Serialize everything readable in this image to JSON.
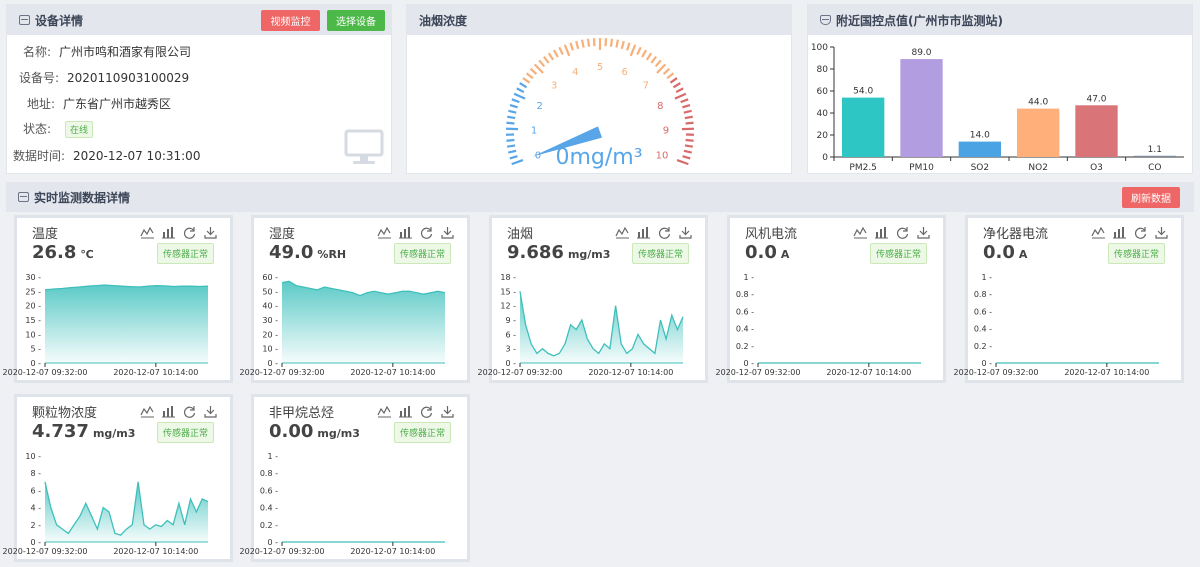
{
  "device": {
    "title": "设备详情",
    "btn_video": "视频监控",
    "btn_select": "选择设备",
    "fields": [
      {
        "k": "名称:",
        "v": "广州市鸣和酒家有限公司"
      },
      {
        "k": "设备号:",
        "v": "2020110903100029"
      },
      {
        "k": "地址:",
        "v": "广东省广州市越秀区"
      },
      {
        "k": "状态:",
        "v": "在线"
      },
      {
        "k": "数据时间:",
        "v": "2020-12-07 10:31:00"
      }
    ]
  },
  "gauge": {
    "title": "油烟浓度",
    "min": 0,
    "max": 10,
    "value": 0,
    "ticks": [
      "0",
      "1",
      "2",
      "3",
      "4",
      "5",
      "6",
      "7",
      "8",
      "9",
      "10"
    ],
    "value_text": "0mg/m³",
    "colors": {
      "low": "#58a5e8",
      "mid": "#f7b07a",
      "high": "#d96a6a"
    }
  },
  "aqi": {
    "title": "附近国控点值(广州市市监测站)",
    "chart_data": {
      "type": "bar",
      "categories": [
        "PM2.5",
        "PM10",
        "SO2",
        "NO2",
        "O3",
        "CO"
      ],
      "values": [
        54.0,
        89.0,
        14.0,
        44.0,
        47.0,
        1.1
      ],
      "value_labels": [
        "54.0",
        "89.0",
        "14.0",
        "44.0",
        "47.0",
        "1.1"
      ],
      "ylim": [
        0,
        100
      ],
      "yticks": [
        "0",
        "20",
        "40",
        "60",
        "80",
        "100"
      ],
      "colors": [
        "#2ec6c4",
        "#b29de0",
        "#4ba3e3",
        "#ffb07a",
        "#d97579",
        "#7a8a9a"
      ]
    }
  },
  "realtime": {
    "title": "实时监测数据详情",
    "refresh": "刷新数据",
    "status_label": "传感器正常",
    "x_labels": [
      "2020-12-07 09:32:00",
      "2020-12-07 10:14:00"
    ],
    "cards": [
      {
        "title": "温度",
        "value": "26.8",
        "unit": "℃",
        "yticks": [
          "0",
          "5",
          "10",
          "15",
          "20",
          "25",
          "30"
        ],
        "ymax": 30,
        "chart_data": {
          "type": "area",
          "values": [
            25.5,
            25.8,
            26.0,
            26.3,
            26.5,
            26.8,
            27.0,
            27.2,
            27.0,
            26.8,
            26.6,
            26.5,
            26.8,
            27.0,
            26.9,
            26.7,
            26.8,
            26.8,
            26.7,
            26.8
          ]
        }
      },
      {
        "title": "湿度",
        "value": "49.0",
        "unit": "%RH",
        "yticks": [
          "0",
          "10",
          "20",
          "30",
          "40",
          "50",
          "60"
        ],
        "ymax": 60,
        "chart_data": {
          "type": "area",
          "values": [
            56,
            57,
            54,
            53,
            52,
            51,
            53,
            52,
            51,
            50,
            49,
            47,
            49,
            50,
            49,
            48,
            49,
            50,
            50,
            49,
            48,
            49,
            50,
            49
          ]
        }
      },
      {
        "title": "油烟",
        "value": "9.686",
        "unit": "mg/m3",
        "yticks": [
          "0",
          "3",
          "6",
          "9",
          "12",
          "15",
          "18"
        ],
        "ymax": 18,
        "chart_data": {
          "type": "area",
          "values": [
            15,
            8,
            4,
            2,
            3,
            2,
            1.5,
            2,
            4,
            8,
            7,
            9,
            5,
            3,
            2,
            4,
            3,
            12,
            4,
            2,
            3,
            6,
            4,
            3,
            2,
            9,
            5,
            10,
            7,
            9.7
          ]
        }
      },
      {
        "title": "风机电流",
        "value": "0.0",
        "unit": "A",
        "yticks": [
          "0",
          "0.2",
          "0.4",
          "0.6",
          "0.8",
          "1"
        ],
        "ymax": 1,
        "chart_data": {
          "type": "line",
          "values": [
            0,
            0,
            0,
            0,
            0,
            0,
            0,
            0,
            0,
            0
          ]
        }
      },
      {
        "title": "净化器电流",
        "value": "0.0",
        "unit": "A",
        "yticks": [
          "0",
          "0.2",
          "0.4",
          "0.6",
          "0.8",
          "1"
        ],
        "ymax": 1,
        "chart_data": {
          "type": "line",
          "values": [
            0,
            0,
            0,
            0,
            0,
            0,
            0,
            0,
            0,
            0
          ]
        }
      },
      {
        "title": "颗粒物浓度",
        "value": "4.737",
        "unit": "mg/m3",
        "yticks": [
          "0",
          "2",
          "4",
          "6",
          "8",
          "10"
        ],
        "ymax": 10,
        "chart_data": {
          "type": "area",
          "values": [
            7,
            4,
            2,
            1.5,
            1,
            2,
            3,
            4.5,
            3,
            1.5,
            4,
            3.5,
            1,
            0.8,
            1.5,
            2,
            7,
            2,
            1.5,
            2,
            1.8,
            2.5,
            2,
            4.5,
            2,
            5,
            3.5,
            5,
            4.7
          ]
        }
      },
      {
        "title": "非甲烷总烃",
        "value": "0.00",
        "unit": "mg/m3",
        "yticks": [
          "0",
          "0.2",
          "0.4",
          "0.6",
          "0.8",
          "1"
        ],
        "ymax": 1,
        "chart_data": {
          "type": "line",
          "values": [
            0,
            0,
            0,
            0,
            0,
            0,
            0,
            0,
            0,
            0
          ]
        }
      }
    ]
  }
}
